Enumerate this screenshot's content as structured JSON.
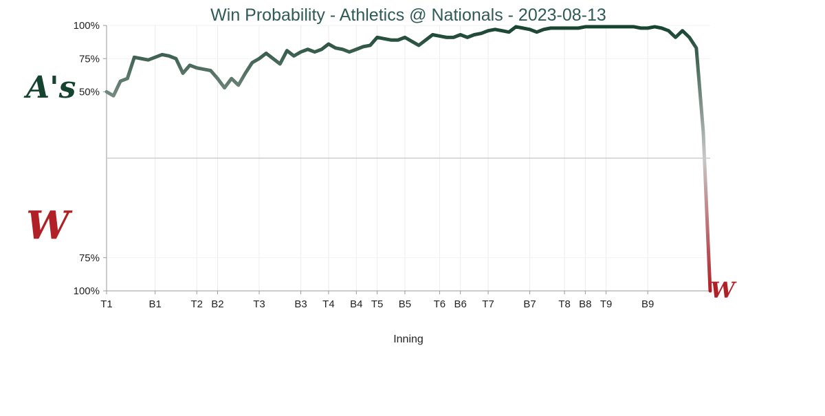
{
  "chart_data": {
    "type": "line",
    "title": "Win Probability - Athletics @ Nationals - 2023-08-13",
    "xlabel": "Inning",
    "ylabel": "",
    "teams": {
      "top": {
        "name": "Athletics",
        "logo_text": "A's",
        "color": "#16432f"
      },
      "bottom": {
        "name": "Nationals",
        "logo_text": "W",
        "color": "#b02026"
      }
    },
    "neutral_color": "#c8c8c8",
    "y_ticks": [
      {
        "value": 100,
        "label": "100%"
      },
      {
        "value": 75,
        "label": "75%"
      },
      {
        "value": 50,
        "label": "50%"
      },
      {
        "value": -75,
        "label": "75%"
      },
      {
        "value": -100,
        "label": "100%"
      }
    ],
    "ylim": [
      -100,
      100
    ],
    "xlim": [
      0,
      87
    ],
    "x_ticks": [
      {
        "x": 0,
        "label": "T1"
      },
      {
        "x": 7,
        "label": "B1"
      },
      {
        "x": 13,
        "label": "T2"
      },
      {
        "x": 16,
        "label": "B2"
      },
      {
        "x": 22,
        "label": "T3"
      },
      {
        "x": 28,
        "label": "B3"
      },
      {
        "x": 32,
        "label": "T4"
      },
      {
        "x": 36,
        "label": "B4"
      },
      {
        "x": 39,
        "label": "T5"
      },
      {
        "x": 43,
        "label": "B5"
      },
      {
        "x": 48,
        "label": "T6"
      },
      {
        "x": 51,
        "label": "B6"
      },
      {
        "x": 55,
        "label": "T7"
      },
      {
        "x": 61,
        "label": "B7"
      },
      {
        "x": 66,
        "label": "T8"
      },
      {
        "x": 69,
        "label": "B8"
      },
      {
        "x": 72,
        "label": "T9"
      },
      {
        "x": 78,
        "label": "B9"
      }
    ],
    "series": [
      {
        "x": [
          0,
          1,
          2,
          3,
          4,
          5,
          6,
          7,
          8,
          9,
          10,
          11,
          12,
          13,
          14,
          15,
          16,
          17,
          18,
          19,
          20,
          21,
          22,
          23,
          24,
          25,
          26,
          27,
          28,
          29,
          30,
          31,
          32,
          33,
          34,
          35,
          36,
          37,
          38,
          39,
          40,
          41,
          42,
          43,
          44,
          45,
          46,
          47,
          48,
          49,
          50,
          51,
          52,
          53,
          54,
          55,
          56,
          57,
          58,
          59,
          60,
          61,
          62,
          63,
          64,
          65,
          66,
          67,
          68,
          69,
          70,
          71,
          72,
          73,
          74,
          75,
          76,
          77,
          78,
          79,
          80,
          81,
          82,
          83,
          84,
          85,
          86,
          87
        ],
        "values": [
          50,
          47,
          58,
          60,
          76,
          75,
          74,
          76,
          78,
          77,
          75,
          64,
          70,
          68,
          67,
          66,
          60,
          53,
          60,
          55,
          64,
          72,
          75,
          79,
          75,
          71,
          81,
          77,
          80,
          82,
          80,
          82,
          86,
          83,
          82,
          80,
          82,
          84,
          85,
          91,
          90,
          89,
          89,
          91,
          88,
          85,
          89,
          93,
          92,
          91,
          91,
          93,
          91,
          93,
          94,
          96,
          97,
          96,
          95,
          99,
          98,
          97,
          95,
          97,
          98,
          98,
          98,
          98,
          98,
          99,
          99,
          99,
          99,
          99,
          99,
          99,
          99,
          98,
          98,
          99,
          98,
          96,
          91,
          96,
          91,
          83,
          20,
          -100
        ]
      }
    ]
  }
}
